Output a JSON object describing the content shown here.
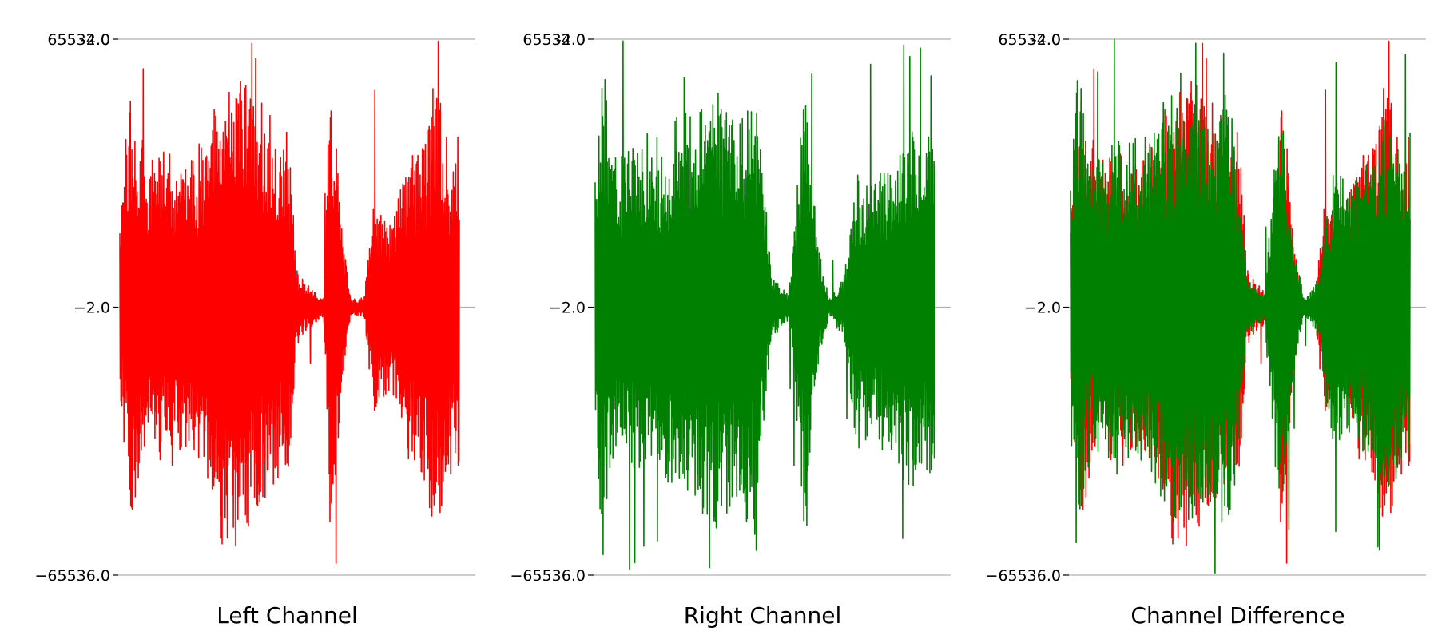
{
  "chart_data": [
    {
      "type": "line",
      "title": "Left Channel",
      "ylim": [
        -65536.0,
        65534.0
      ],
      "yticks": [
        {
          "value": 65534.0,
          "labels": [
            "65534.0",
            "-2.0"
          ]
        },
        {
          "value": -2.0,
          "labels": [
            "−2.0"
          ]
        },
        {
          "value": -65536.0,
          "labels": [
            "−65536.0"
          ]
        }
      ],
      "grid": "horizontal",
      "series": [
        {
          "color": "#ff0000",
          "envelope": [
            [
              0,
              0.35
            ],
            [
              0.01,
              0.5
            ],
            [
              0.03,
              0.92
            ],
            [
              0.08,
              0.55
            ],
            [
              0.13,
              0.62
            ],
            [
              0.2,
              0.6
            ],
            [
              0.26,
              0.7
            ],
            [
              0.3,
              0.9
            ],
            [
              0.38,
              0.95
            ],
            [
              0.46,
              0.7
            ],
            [
              0.5,
              0.65
            ],
            [
              0.52,
              0.15
            ],
            [
              0.56,
              0.08
            ],
            [
              0.6,
              0.04
            ],
            [
              0.62,
              0.95
            ],
            [
              0.655,
              0.3
            ],
            [
              0.68,
              0.03
            ],
            [
              0.72,
              0.04
            ],
            [
              0.75,
              0.45
            ],
            [
              0.8,
              0.35
            ],
            [
              0.85,
              0.6
            ],
            [
              0.9,
              0.7
            ],
            [
              0.93,
              0.95
            ],
            [
              0.97,
              0.65
            ],
            [
              1,
              0.7
            ]
          ]
        }
      ]
    },
    {
      "type": "line",
      "title": "Right Channel",
      "ylim": [
        -65536.0,
        65534.0
      ],
      "yticks": [
        {
          "value": 65534.0,
          "labels": [
            "65534.0",
            "-2.0"
          ]
        },
        {
          "value": -2.0,
          "labels": [
            "−2.0"
          ]
        },
        {
          "value": -65536.0,
          "labels": [
            "−65536.0"
          ]
        }
      ],
      "grid": "horizontal",
      "series": [
        {
          "color": "#008000",
          "envelope": [
            [
              0,
              0.55
            ],
            [
              0.02,
              0.98
            ],
            [
              0.06,
              0.6
            ],
            [
              0.12,
              0.65
            ],
            [
              0.2,
              0.65
            ],
            [
              0.26,
              0.75
            ],
            [
              0.33,
              0.9
            ],
            [
              0.42,
              0.8
            ],
            [
              0.47,
              0.9
            ],
            [
              0.52,
              0.12
            ],
            [
              0.57,
              0.05
            ],
            [
              0.62,
              0.92
            ],
            [
              0.655,
              0.25
            ],
            [
              0.69,
              0.03
            ],
            [
              0.73,
              0.12
            ],
            [
              0.77,
              0.55
            ],
            [
              0.82,
              0.5
            ],
            [
              0.88,
              0.6
            ],
            [
              0.93,
              0.8
            ],
            [
              0.97,
              0.6
            ],
            [
              1,
              0.7
            ]
          ]
        }
      ]
    },
    {
      "type": "line",
      "title": "Channel Difference",
      "ylim": [
        -65536.0,
        65534.0
      ],
      "yticks": [
        {
          "value": 65534.0,
          "labels": [
            "65534.0",
            "-2.0"
          ]
        },
        {
          "value": -2.0,
          "labels": [
            "−2.0"
          ]
        },
        {
          "value": -65536.0,
          "labels": [
            "−65536.0"
          ]
        }
      ],
      "grid": "horizontal",
      "series": [
        {
          "color": "#ff0000",
          "envelope": [
            [
              0,
              0.35
            ],
            [
              0.01,
              0.5
            ],
            [
              0.03,
              0.92
            ],
            [
              0.08,
              0.55
            ],
            [
              0.13,
              0.62
            ],
            [
              0.2,
              0.6
            ],
            [
              0.26,
              0.7
            ],
            [
              0.3,
              0.9
            ],
            [
              0.38,
              0.95
            ],
            [
              0.46,
              0.7
            ],
            [
              0.5,
              0.65
            ],
            [
              0.52,
              0.15
            ],
            [
              0.56,
              0.08
            ],
            [
              0.6,
              0.04
            ],
            [
              0.62,
              0.95
            ],
            [
              0.655,
              0.3
            ],
            [
              0.68,
              0.03
            ],
            [
              0.72,
              0.04
            ],
            [
              0.75,
              0.45
            ],
            [
              0.8,
              0.35
            ],
            [
              0.85,
              0.6
            ],
            [
              0.9,
              0.7
            ],
            [
              0.93,
              0.95
            ],
            [
              0.97,
              0.65
            ],
            [
              1,
              0.7
            ]
          ]
        },
        {
          "color": "#008000",
          "envelope": [
            [
              0,
              0.55
            ],
            [
              0.02,
              0.98
            ],
            [
              0.06,
              0.6
            ],
            [
              0.12,
              0.65
            ],
            [
              0.2,
              0.65
            ],
            [
              0.26,
              0.75
            ],
            [
              0.33,
              0.9
            ],
            [
              0.42,
              0.8
            ],
            [
              0.47,
              0.9
            ],
            [
              0.52,
              0.12
            ],
            [
              0.57,
              0.05
            ],
            [
              0.62,
              0.92
            ],
            [
              0.655,
              0.25
            ],
            [
              0.69,
              0.03
            ],
            [
              0.73,
              0.12
            ],
            [
              0.77,
              0.55
            ],
            [
              0.82,
              0.5
            ],
            [
              0.88,
              0.6
            ],
            [
              0.93,
              0.8
            ],
            [
              0.97,
              0.6
            ],
            [
              1,
              0.7
            ]
          ]
        }
      ]
    }
  ]
}
